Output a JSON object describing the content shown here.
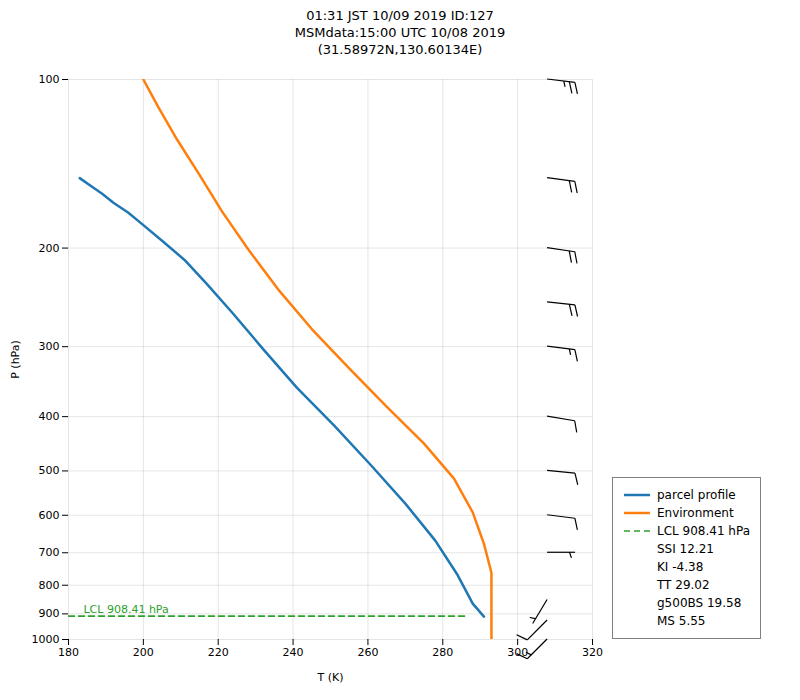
{
  "chart_data": {
    "type": "line",
    "title": "01:31 JST 10/09 2019  ID:127\nMSMdata:15:00 UTC 10/08 2019\n(31.58972N,130.60134E)",
    "xlabel": "T (K)",
    "ylabel": "P (hPa)",
    "xlim": [
      180,
      320
    ],
    "ylim": [
      1000,
      100
    ],
    "xticks": [
      180,
      200,
      220,
      240,
      260,
      280,
      300,
      320
    ],
    "yticks": [
      100,
      200,
      300,
      400,
      500,
      600,
      700,
      800,
      900,
      1000
    ],
    "log": "y",
    "grid": true,
    "legend": "lower right",
    "series": [
      {
        "name": "parcel profile",
        "color": "#1f77b4",
        "line_style": "solid",
        "x": [
          183,
          186,
          189,
          192,
          196,
          200,
          205,
          211,
          217,
          224,
          232,
          241,
          251,
          261,
          270,
          278,
          284,
          288,
          291
        ],
        "y": [
          150,
          155,
          160,
          166,
          173,
          182,
          194,
          210,
          232,
          262,
          303,
          355,
          415,
          490,
          572,
          666,
          768,
          863,
          910
        ]
      },
      {
        "name": "Environment",
        "color": "#ff7f0e",
        "line_style": "solid",
        "x": [
          200,
          204,
          209,
          215,
          221,
          228,
          236,
          245,
          255,
          265,
          275,
          283,
          288,
          291,
          293,
          293
        ],
        "y": [
          100,
          112,
          128,
          148,
          172,
          201,
          237,
          279,
          328,
          384,
          447,
          516,
          593,
          675,
          760,
          1000
        ]
      },
      {
        "name": "LCL 908.41 hPa",
        "color": "#2ca02c",
        "line_style": "dashed",
        "x": [
          180,
          286
        ],
        "y": [
          908.41,
          908.41
        ]
      }
    ],
    "annotations": [
      {
        "text": "LCL 908.41 hPa",
        "x": 184,
        "y": 908.41,
        "color": "#2ca02c"
      }
    ],
    "stats": [
      "SSI 12.21",
      "KI -4.38",
      "TT 29.02",
      "g500BS 19.58",
      "MS 5.55"
    ],
    "barbs": {
      "x": 308,
      "y": [
        100,
        150,
        200,
        250,
        300,
        400,
        500,
        600,
        700,
        850,
        925,
        1000
      ],
      "u": [
        -25,
        -22,
        -20,
        -18,
        -16,
        -12,
        -10,
        -8,
        -5,
        3,
        8,
        10
      ],
      "v": [
        3,
        3,
        3,
        2,
        2,
        2,
        1,
        1,
        0,
        5,
        8,
        10
      ]
    }
  }
}
